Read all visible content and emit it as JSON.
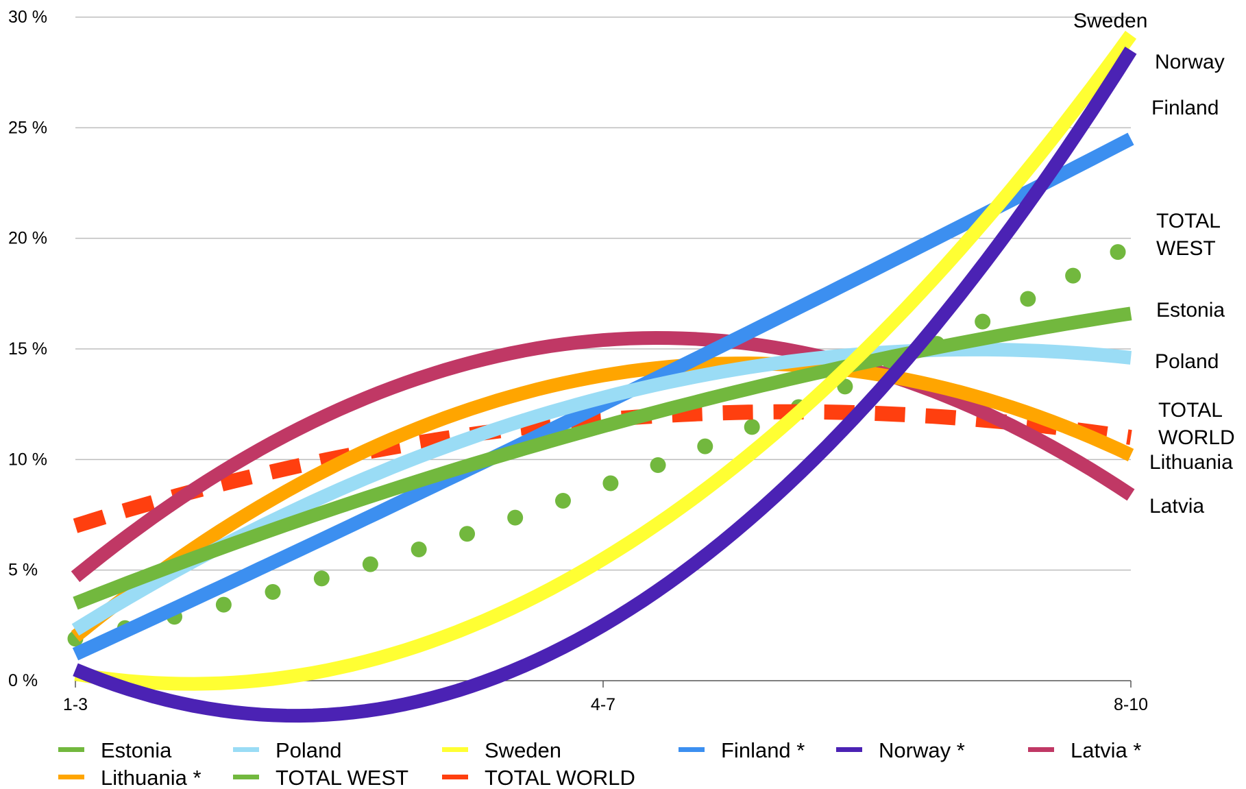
{
  "chart_data": {
    "type": "line",
    "title": "",
    "xlabel": "",
    "ylabel": "",
    "categories": [
      "1-3",
      "4-7",
      "8-10"
    ],
    "y_ticks": [
      "0 %",
      "5 %",
      "10 %",
      "15 %",
      "20 %",
      "25 %",
      "30 %"
    ],
    "ylim": [
      0,
      30
    ],
    "grid": "horizontal",
    "legend_position": "bottom",
    "series": [
      {
        "name": "Estonia",
        "legend": "Estonia",
        "end_label": "Estonia",
        "color": "#72b83e",
        "style": "solid",
        "values": [
          3.5,
          11.5,
          16.6
        ]
      },
      {
        "name": "Poland",
        "legend": "Poland",
        "end_label": "Poland",
        "color": "#9adcf5",
        "style": "solid",
        "values": [
          2.3,
          12.8,
          14.6
        ]
      },
      {
        "name": "Sweden",
        "legend": "Sweden",
        "end_label": "Sweden",
        "color": "#ffff33",
        "style": "solid",
        "values": [
          0.3,
          5.5,
          29.2
        ]
      },
      {
        "name": "Finland",
        "legend": "Finland *",
        "end_label": "Finland",
        "color": "#3c8ff0",
        "style": "solid",
        "values": [
          1.2,
          12.5,
          24.5
        ]
      },
      {
        "name": "Norway",
        "legend": "Norway *",
        "end_label": "Norway",
        "color": "#4b22b4",
        "style": "solid",
        "values": [
          0.5,
          2.5,
          28.5
        ]
      },
      {
        "name": "Latvia",
        "legend": "Latvia *",
        "end_label": "Latvia",
        "color": "#c03865",
        "style": "solid",
        "values": [
          4.7,
          15.4,
          8.4
        ]
      },
      {
        "name": "Lithuania",
        "legend": "Lithuania *",
        "end_label": "Lithuania",
        "color": "#ffa500",
        "style": "solid",
        "values": [
          2.0,
          13.8,
          10.2
        ]
      },
      {
        "name": "TOTAL WEST",
        "legend": "TOTAL WEST",
        "end_label": [
          "TOTAL",
          "WEST"
        ],
        "color": "#72b83e",
        "style": "dotted",
        "values": [
          1.9,
          8.8,
          19.7
        ]
      },
      {
        "name": "TOTAL WORLD",
        "legend": "TOTAL WORLD",
        "end_label": [
          "TOTAL",
          "WORLD"
        ],
        "color": "#ff3f0f",
        "style": "dashed",
        "values": [
          7.0,
          11.8,
          11.0
        ]
      }
    ]
  }
}
